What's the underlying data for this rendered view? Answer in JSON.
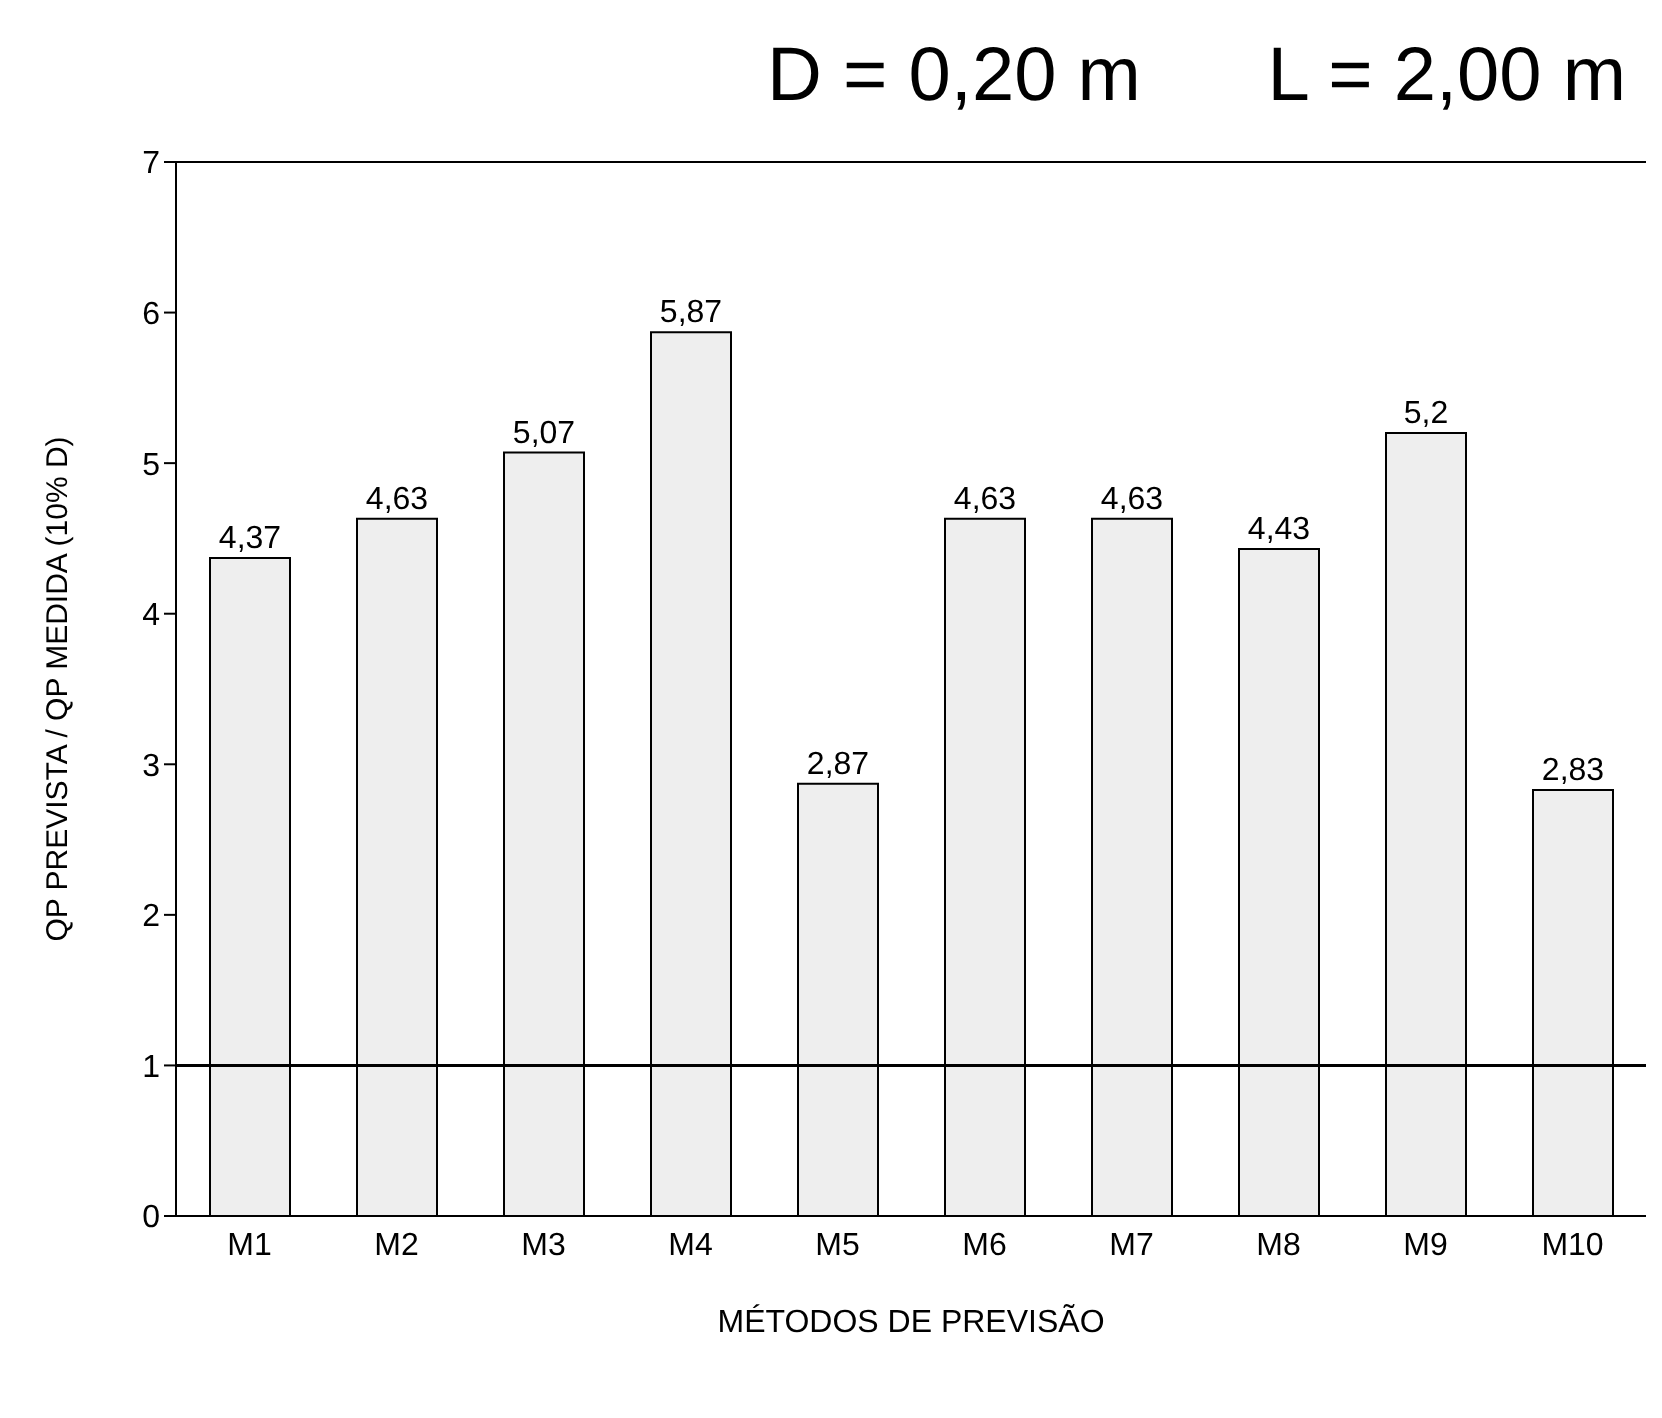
{
  "chart_data": {
    "type": "bar",
    "title": "D = 0,20 m      L = 2,00 m",
    "xlabel": "MÉTODOS DE PREVISÃO",
    "ylabel": "QP PREVISTA / QP MEDIDA (10% D)",
    "categories": [
      "M1",
      "M2",
      "M3",
      "M4",
      "M5",
      "M6",
      "M7",
      "M8",
      "M9",
      "M10"
    ],
    "values": [
      4.37,
      4.63,
      5.07,
      5.87,
      2.87,
      4.63,
      4.63,
      4.43,
      5.2,
      2.83
    ],
    "value_labels": [
      "4,37",
      "4,63",
      "5,07",
      "5,87",
      "2,87",
      "4,63",
      "4,63",
      "4,43",
      "5,2",
      "2,83"
    ],
    "color": "#eeeeee",
    "ylim": [
      0,
      7
    ],
    "yticks": [
      0,
      1,
      2,
      3,
      4,
      5,
      6,
      7
    ],
    "grid": false,
    "legend": false,
    "ref_lines": [
      {
        "axis": "y",
        "value": 1,
        "label": null
      }
    ]
  }
}
